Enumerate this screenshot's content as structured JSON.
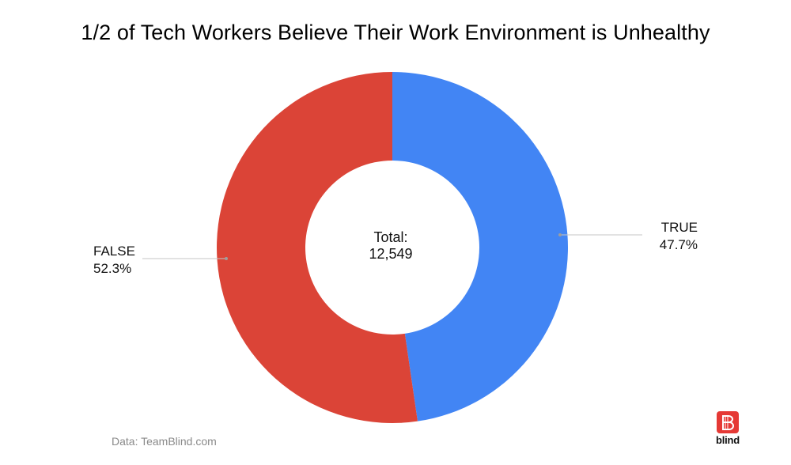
{
  "chart_data": {
    "type": "pie",
    "donut": true,
    "title": "1/2 of Tech Workers Believe Their Work Environment is Unhealthy",
    "categories": [
      "TRUE",
      "FALSE"
    ],
    "values": [
      47.7,
      52.3
    ],
    "value_labels": [
      "47.7%",
      "52.3%"
    ],
    "colors": [
      "#4285f4",
      "#db4437"
    ],
    "center_label": {
      "line1": "Total:",
      "line2": "12,549"
    },
    "legend": "none",
    "source_note": "Data: TeamBlind.com"
  },
  "branding": {
    "logo_word": "blind",
    "logo_color": "#e53935",
    "logo_icon": "blind-b-icon"
  }
}
